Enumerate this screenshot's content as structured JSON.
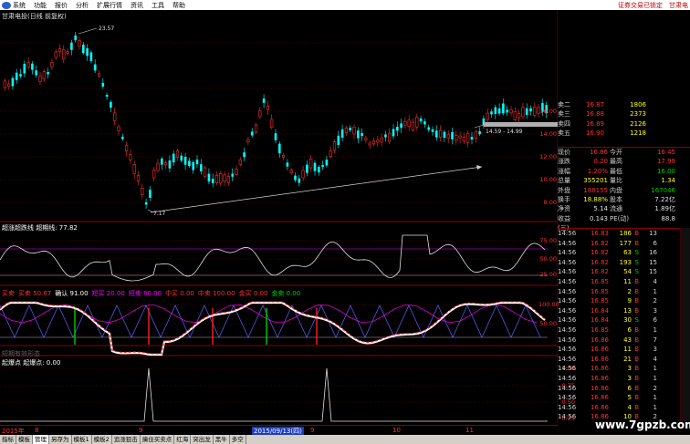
{
  "menu": {
    "items": [
      "系统",
      "功能",
      "报价",
      "分析",
      "扩展行情",
      "资讯",
      "工具",
      "帮助"
    ],
    "right_notice": "证券交易已锁定",
    "right_brand": "甘肃电"
  },
  "chart": {
    "title": "甘肃电投(日线 前复权)",
    "annotations": {
      "high": "23.57",
      "low": "7.17",
      "range": "14.59 - 14.99"
    },
    "y_labels": [
      "16.00",
      "14.00",
      "12.00",
      "10.00",
      "8.00"
    ]
  },
  "orderbook": [
    {
      "label": "卖二",
      "price": "16.87",
      "vol": "1806"
    },
    {
      "label": "卖三",
      "price": "16.88",
      "vol": "2373"
    },
    {
      "label": "卖四",
      "price": "16.89",
      "vol": "2126"
    },
    {
      "label": "卖五",
      "price": "16.90",
      "vol": "1218"
    }
  ],
  "quote": [
    {
      "k1": "现价",
      "v1": "16.86",
      "k2": "今开",
      "v2": "16.45"
    },
    {
      "k1": "涨跌",
      "v1": "0.20",
      "k2": "最高",
      "v2": "17.99"
    },
    {
      "k1": "涨幅",
      "v1": "1.20%",
      "k2": "最低",
      "v2": "16.00"
    },
    {
      "k1": "总量",
      "v1": "355201",
      "k2": "量比",
      "v2": "1.34"
    },
    {
      "k1": "外盘",
      "v1": "188155",
      "k2": "内盘",
      "v2": "167046"
    },
    {
      "k1": "换手",
      "v1": "18.88%",
      "k2": "股本",
      "v2": "7.22亿"
    },
    {
      "k1": "净资",
      "v1": "5.14",
      "k2": "流通",
      "v2": "1.89亿"
    },
    {
      "k1": "收益(三)",
      "v1": "0.143",
      "k2": "PE(动)",
      "v2": "88.8"
    }
  ],
  "trades": [
    {
      "time": "14:56",
      "price": "16.83",
      "vol": "186",
      "dir": "B",
      "num": "13"
    },
    {
      "time": "14:56",
      "price": "16.82",
      "vol": "177",
      "dir": "B",
      "num": "6"
    },
    {
      "time": "14:56",
      "price": "16.82",
      "vol": "63",
      "dir": "S",
      "num": "16"
    },
    {
      "time": "14:56",
      "price": "16.82",
      "vol": "193",
      "dir": "S",
      "num": "15"
    },
    {
      "time": "14:56",
      "price": "16.82",
      "vol": "54",
      "dir": "S",
      "num": "15"
    },
    {
      "time": "14:56",
      "price": "16.85",
      "vol": "11",
      "dir": "B",
      "num": "4"
    },
    {
      "time": "14:56",
      "price": "16.85",
      "vol": "2",
      "dir": "B",
      "num": "1"
    },
    {
      "time": "14:56",
      "price": "16.85",
      "vol": "9",
      "dir": "B",
      "num": "2"
    },
    {
      "time": "14:56",
      "price": "16.84",
      "vol": "13",
      "dir": "B",
      "num": "3"
    },
    {
      "time": "14:56",
      "price": "16.84",
      "vol": "30",
      "dir": "S",
      "num": "6"
    },
    {
      "time": "14:56",
      "price": "16.85",
      "vol": "6",
      "dir": "B",
      "num": "1"
    },
    {
      "time": "14:56",
      "price": "16.86",
      "vol": "43",
      "dir": "B",
      "num": "7"
    },
    {
      "time": "14:56",
      "price": "16.86",
      "vol": "11",
      "dir": "B",
      "num": "3"
    },
    {
      "time": "14:56",
      "price": "16.86",
      "vol": "21",
      "dir": "B",
      "num": "4"
    },
    {
      "time": "14:56",
      "price": "16.86",
      "vol": "3",
      "dir": "B",
      "num": "1"
    },
    {
      "time": "14:56",
      "price": "16.86",
      "vol": "3",
      "dir": "B",
      "num": "1"
    },
    {
      "time": "14:56",
      "price": "16.86",
      "vol": "6",
      "dir": "B",
      "num": "2"
    },
    {
      "time": "14:56",
      "price": "16.86",
      "vol": "5",
      "dir": "B",
      "num": "1"
    },
    {
      "time": "14:56",
      "price": "16.86",
      "vol": "4",
      "dir": "B",
      "num": "1"
    },
    {
      "time": "14:56",
      "price": "16.86",
      "vol": "10",
      "dir": "B",
      "num": "2"
    }
  ],
  "indicators": {
    "panel1": "超涨超跌线 超期线: 77.82",
    "panel1_axis": [
      "75.00",
      "50.00",
      "25.00"
    ],
    "panel2": [
      {
        "text": "买卖",
        "color": "#ff3030"
      },
      {
        "text": "买卖 50.67",
        "color": "#ff3030"
      },
      {
        "text": "确认 91.00",
        "color": "#ffffff"
      },
      {
        "text": "短买 20.00",
        "color": "#ff00ff"
      },
      {
        "text": "短卖 80.00",
        "color": "#ff00ff"
      },
      {
        "text": "中买 0.00",
        "color": "#ff3030"
      },
      {
        "text": "中卖 100.00",
        "color": "#ff3030"
      },
      {
        "text": "金买 0.00",
        "color": "#ff3030"
      },
      {
        "text": "金卖 0.00",
        "color": "#00d000"
      }
    ],
    "panel2_axis": [
      "100.00",
      "50.00"
    ],
    "panel3": "短期有效形态",
    "panel4": "起爆点 起爆点: 0.00",
    "panel4_axis": [
      "1.00",
      "0.75",
      "0.50",
      "0.25"
    ]
  },
  "dates": {
    "left": "2015年",
    "marks": [
      "8",
      "9",
      "10",
      "11"
    ],
    "highlight": "2015/09/13(四)"
  },
  "tabs": [
    "指标",
    "模板",
    "管理",
    "另存为",
    "模板1",
    "模板2",
    "追涨狙击",
    "擒住买卖点",
    "红海",
    "突出龙",
    "黑牛",
    "多空"
  ],
  "watermark": "www.7gpzb.com",
  "colors": {
    "up": "#ff3030",
    "down": "#00ffff",
    "grid": "#8c0000",
    "background": "#000000"
  }
}
